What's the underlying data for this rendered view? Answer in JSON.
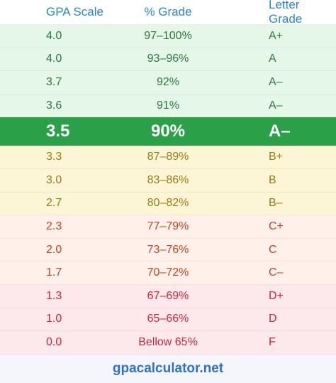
{
  "header": {
    "gpa": "GPA Scale",
    "pct": "% Grade",
    "letter": "Letter Grade"
  },
  "rows": [
    {
      "gpa": "4.0",
      "pct": "97–100%",
      "letter": "A+"
    },
    {
      "gpa": "4.0",
      "pct": "93–96%",
      "letter": "A"
    },
    {
      "gpa": "3.7",
      "pct": "92%",
      "letter": "A–"
    },
    {
      "gpa": "3.6",
      "pct": "91%",
      "letter": "A–"
    },
    {
      "gpa": "3.5",
      "pct": "90%",
      "letter": "A–"
    },
    {
      "gpa": "3.3",
      "pct": "87–89%",
      "letter": "B+"
    },
    {
      "gpa": "3.0",
      "pct": "83–86%",
      "letter": "B"
    },
    {
      "gpa": "2.7",
      "pct": "80–82%",
      "letter": "B–"
    },
    {
      "gpa": "2.3",
      "pct": "77–79%",
      "letter": "C+"
    },
    {
      "gpa": "2.0",
      "pct": "73–76%",
      "letter": "C"
    },
    {
      "gpa": "1.7",
      "pct": "70–72%",
      "letter": "C–"
    },
    {
      "gpa": "1.3",
      "pct": "67–69%",
      "letter": "D+"
    },
    {
      "gpa": "1.0",
      "pct": "65–66%",
      "letter": "D"
    },
    {
      "gpa": "0.0",
      "pct": "Bellow 65%",
      "letter": "F"
    }
  ],
  "footer": {
    "site": "gpacalculator.net"
  }
}
